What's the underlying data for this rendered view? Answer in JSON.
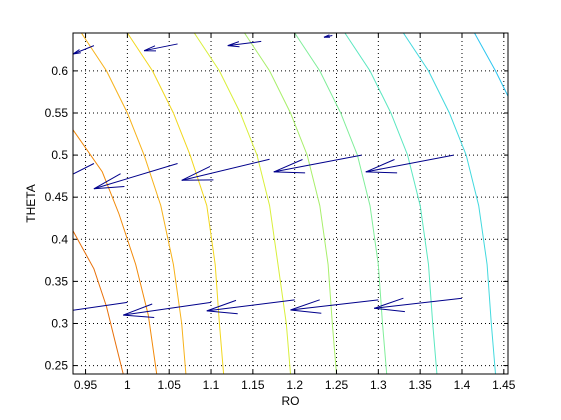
{
  "chart_data": {
    "type": "contour-quiver",
    "xlabel": "RO",
    "ylabel": "THETA",
    "xlim": [
      0.935,
      1.455
    ],
    "ylim": [
      0.24,
      0.645
    ],
    "xticks": [
      0.95,
      1,
      1.05,
      1.1,
      1.15,
      1.2,
      1.25,
      1.3,
      1.35,
      1.4,
      1.45
    ],
    "yticks": [
      0.25,
      0.3,
      0.35,
      0.4,
      0.45,
      0.5,
      0.55,
      0.6
    ],
    "grid": true,
    "colors": {
      "quiver": "#00008b",
      "contour_scale": [
        "#e8700a",
        "#f28a0a",
        "#f7b21a",
        "#f2d71d",
        "#d9ef3a",
        "#a8ef6a",
        "#80ee9a",
        "#5be7c0",
        "#42d9de",
        "#2cc6f0"
      ]
    },
    "contours": [
      {
        "level": 1,
        "points": [
          [
            0.935,
            0.41
          ],
          [
            0.96,
            0.365
          ],
          [
            0.975,
            0.32
          ],
          [
            0.985,
            0.28
          ],
          [
            0.995,
            0.24
          ]
        ]
      },
      {
        "level": 2,
        "points": [
          [
            0.935,
            0.53
          ],
          [
            0.97,
            0.48
          ],
          [
            0.99,
            0.43
          ],
          [
            1.01,
            0.37
          ],
          [
            1.025,
            0.31
          ],
          [
            1.035,
            0.24
          ]
        ]
      },
      {
        "level": 3,
        "points": [
          [
            0.945,
            0.645
          ],
          [
            0.975,
            0.6
          ],
          [
            1.0,
            0.55
          ],
          [
            1.02,
            0.5
          ],
          [
            1.04,
            0.44
          ],
          [
            1.055,
            0.37
          ],
          [
            1.065,
            0.3
          ],
          [
            1.07,
            0.24
          ]
        ]
      },
      {
        "level": 4,
        "points": [
          [
            1.0,
            0.645
          ],
          [
            1.03,
            0.6
          ],
          [
            1.055,
            0.55
          ],
          [
            1.075,
            0.5
          ],
          [
            1.095,
            0.44
          ],
          [
            1.105,
            0.37
          ],
          [
            1.11,
            0.3
          ],
          [
            1.115,
            0.24
          ]
        ]
      },
      {
        "level": 5,
        "points": [
          [
            1.08,
            0.645
          ],
          [
            1.11,
            0.6
          ],
          [
            1.135,
            0.55
          ],
          [
            1.155,
            0.5
          ],
          [
            1.17,
            0.44
          ],
          [
            1.18,
            0.37
          ],
          [
            1.19,
            0.3
          ],
          [
            1.195,
            0.24
          ]
        ]
      },
      {
        "level": 6,
        "points": [
          [
            1.14,
            0.645
          ],
          [
            1.17,
            0.6
          ],
          [
            1.195,
            0.55
          ],
          [
            1.215,
            0.5
          ],
          [
            1.23,
            0.44
          ],
          [
            1.24,
            0.37
          ],
          [
            1.245,
            0.3
          ],
          [
            1.25,
            0.24
          ]
        ]
      },
      {
        "level": 7,
        "points": [
          [
            1.2,
            0.645
          ],
          [
            1.23,
            0.6
          ],
          [
            1.255,
            0.55
          ],
          [
            1.275,
            0.5
          ],
          [
            1.29,
            0.44
          ],
          [
            1.3,
            0.37
          ],
          [
            1.305,
            0.3
          ],
          [
            1.31,
            0.24
          ]
        ]
      },
      {
        "level": 8,
        "points": [
          [
            1.26,
            0.645
          ],
          [
            1.29,
            0.6
          ],
          [
            1.315,
            0.55
          ],
          [
            1.335,
            0.5
          ],
          [
            1.35,
            0.44
          ],
          [
            1.36,
            0.37
          ],
          [
            1.365,
            0.3
          ],
          [
            1.37,
            0.24
          ]
        ]
      },
      {
        "level": 9,
        "points": [
          [
            1.33,
            0.645
          ],
          [
            1.36,
            0.6
          ],
          [
            1.385,
            0.55
          ],
          [
            1.405,
            0.5
          ],
          [
            1.42,
            0.44
          ],
          [
            1.43,
            0.37
          ],
          [
            1.435,
            0.3
          ],
          [
            1.44,
            0.24
          ]
        ]
      },
      {
        "level": 10,
        "points": [
          [
            1.415,
            0.645
          ],
          [
            1.44,
            0.6
          ],
          [
            1.455,
            0.57
          ]
        ]
      }
    ],
    "vectors": [
      {
        "x": 1.0,
        "y": 0.325,
        "u": -0.105,
        "v": -0.015
      },
      {
        "x": 1.1,
        "y": 0.325,
        "u": -0.105,
        "v": -0.015
      },
      {
        "x": 1.2,
        "y": 0.328,
        "u": -0.105,
        "v": -0.013
      },
      {
        "x": 1.3,
        "y": 0.328,
        "u": -0.105,
        "v": -0.012
      },
      {
        "x": 1.4,
        "y": 0.33,
        "u": -0.105,
        "v": -0.012
      },
      {
        "x": 0.96,
        "y": 0.49,
        "u": -0.04,
        "v": -0.02
      },
      {
        "x": 1.06,
        "y": 0.49,
        "u": -0.1,
        "v": -0.03
      },
      {
        "x": 1.17,
        "y": 0.495,
        "u": -0.105,
        "v": -0.025
      },
      {
        "x": 1.28,
        "y": 0.5,
        "u": -0.105,
        "v": -0.02
      },
      {
        "x": 1.39,
        "y": 0.5,
        "u": -0.105,
        "v": -0.02
      },
      {
        "x": 0.96,
        "y": 0.63,
        "u": -0.025,
        "v": -0.01
      },
      {
        "x": 1.06,
        "y": 0.632,
        "u": -0.04,
        "v": -0.008
      },
      {
        "x": 1.16,
        "y": 0.635,
        "u": -0.04,
        "v": -0.005
      },
      {
        "x": 1.245,
        "y": 0.642,
        "u": -0.01,
        "v": -0.002
      }
    ]
  }
}
